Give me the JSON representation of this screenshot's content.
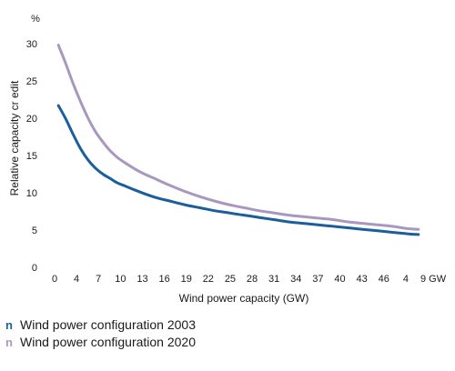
{
  "chart_data": {
    "type": "line",
    "ylabel": "Relative capacity cr    edit",
    "yunit": "%",
    "xlabel": "Wind power capacity (GW)",
    "ylim": [
      0,
      30
    ],
    "yticks": [
      "0",
      "5",
      "10",
      "15",
      "20",
      "25",
      "30"
    ],
    "xticks": [
      "0",
      "4",
      "7",
      "10",
      "13",
      "16",
      "19",
      "22",
      "25",
      "28",
      "31",
      "34",
      "37",
      "40",
      "43",
      "46",
      "4",
      "9 GW"
    ],
    "grid": false,
    "legend_position": "bottom-left",
    "legend_marker": "n",
    "x": [
      1,
      2,
      3,
      4,
      5,
      6,
      7,
      8,
      9,
      10,
      12,
      14,
      16,
      18,
      20,
      22,
      24,
      26,
      28,
      30,
      32,
      34,
      36,
      38,
      40,
      42,
      44,
      46,
      48,
      49.5
    ],
    "series": [
      {
        "name": "Wind power configuration 2003",
        "color": "#1a5e9c",
        "values": [
          21.7,
          19.9,
          17.8,
          15.9,
          14.4,
          13.3,
          12.5,
          11.9,
          11.3,
          10.9,
          10.1,
          9.4,
          8.9,
          8.4,
          8.0,
          7.6,
          7.3,
          7.0,
          6.7,
          6.4,
          6.1,
          5.9,
          5.7,
          5.5,
          5.3,
          5.1,
          4.9,
          4.7,
          4.5,
          4.4
        ]
      },
      {
        "name": "Wind power configuration 2020",
        "color": "#a898c0",
        "values": [
          29.8,
          27.3,
          24.6,
          22.2,
          20.0,
          18.2,
          16.8,
          15.6,
          14.7,
          14.0,
          12.8,
          11.9,
          11.0,
          10.2,
          9.5,
          8.9,
          8.4,
          8.0,
          7.6,
          7.3,
          7.0,
          6.8,
          6.6,
          6.4,
          6.1,
          5.9,
          5.7,
          5.5,
          5.2,
          5.1
        ]
      }
    ]
  }
}
